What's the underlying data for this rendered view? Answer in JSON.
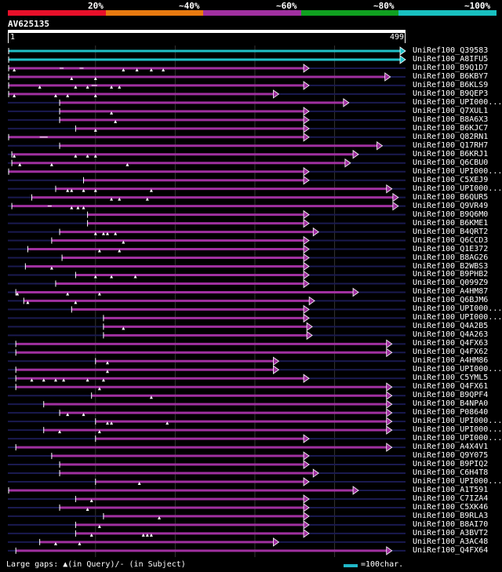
{
  "legend": {
    "labels": [
      "20%",
      "~40%",
      "~60%",
      "~80%",
      "~100%"
    ],
    "colors": [
      "#e8102a",
      "#e87a10",
      "#a030a0",
      "#10a020",
      "#18c0c0"
    ]
  },
  "query": {
    "name": "AV625135",
    "start": "1",
    "end": "499",
    "length": 499
  },
  "hits": [
    {
      "name": "UniRef100_Q39583",
      "color": "#20c0c8",
      "start": 1,
      "end": 499,
      "marks": [],
      "gaps": []
    },
    {
      "name": "UniRef100_A8IFU5",
      "color": "#20c0c8",
      "start": 1,
      "end": 499,
      "marks": [],
      "gaps": []
    },
    {
      "name": "UniRef100_B9Q1D7",
      "color": "#a030a0",
      "start": 1,
      "end": 378,
      "marks": [
        8,
        145,
        162,
        180,
        195
      ],
      "gaps": [
        [
          65,
          70
        ],
        [
          90,
          95
        ]
      ]
    },
    {
      "name": "UniRef100_B6KBY7",
      "color": "#a030a0",
      "start": 1,
      "end": 480,
      "marks": [
        80,
        110
      ],
      "gaps": []
    },
    {
      "name": "UniRef100_B6KLS9",
      "color": "#a030a0",
      "start": 1,
      "end": 378,
      "marks": [
        40,
        85,
        100,
        130,
        140
      ],
      "gaps": [
        [
          105,
          112
        ]
      ]
    },
    {
      "name": "UniRef100_B9QEP3",
      "color": "#a030a0",
      "start": 1,
      "end": 340,
      "marks": [
        8,
        60,
        75,
        110
      ],
      "gaps": []
    },
    {
      "name": "UniRef100_UPI000...",
      "color": "#a030a0",
      "start": 65,
      "end": 428,
      "marks": [],
      "gaps": []
    },
    {
      "name": "UniRef100_Q7XUL1",
      "color": "#a030a0",
      "start": 65,
      "end": 378,
      "marks": [
        130
      ],
      "gaps": []
    },
    {
      "name": "UniRef100_B8A6X3",
      "color": "#a030a0",
      "start": 65,
      "end": 378,
      "marks": [
        135
      ],
      "gaps": []
    },
    {
      "name": "UniRef100_B6KJC7",
      "color": "#a030a0",
      "start": 85,
      "end": 378,
      "marks": [
        110
      ],
      "gaps": []
    },
    {
      "name": "UniRef100_Q82RN1",
      "color": "#a030a0",
      "start": 1,
      "end": 378,
      "marks": [],
      "gaps": [
        [
          40,
          50
        ]
      ]
    },
    {
      "name": "UniRef100_Q17RH7",
      "color": "#a030a0",
      "start": 65,
      "end": 470,
      "marks": [],
      "gaps": []
    },
    {
      "name": "UniRef100_B6KRJ1",
      "color": "#a030a0",
      "start": 5,
      "end": 440,
      "marks": [
        8,
        85,
        100,
        110
      ],
      "gaps": []
    },
    {
      "name": "UniRef100_Q6CBU0",
      "color": "#a030a0",
      "start": 5,
      "end": 430,
      "marks": [
        15,
        55,
        150
      ],
      "gaps": []
    },
    {
      "name": "UniRef100_UPI000...",
      "color": "#a030a0",
      "start": 1,
      "end": 378,
      "marks": [],
      "gaps": []
    },
    {
      "name": "UniRef100_C5XEJ9",
      "color": "#a030a0",
      "start": 95,
      "end": 378,
      "marks": [],
      "gaps": []
    },
    {
      "name": "UniRef100_UPI000...",
      "color": "#a030a0",
      "start": 60,
      "end": 482,
      "marks": [
        75,
        80,
        95,
        110,
        180
      ],
      "gaps": []
    },
    {
      "name": "UniRef100_B6QUR5",
      "color": "#a030a0",
      "start": 30,
      "end": 490,
      "marks": [
        130,
        140,
        175
      ],
      "gaps": []
    },
    {
      "name": "UniRef100_Q9VR49",
      "color": "#a030a0",
      "start": 5,
      "end": 490,
      "marks": [
        80,
        88,
        95
      ],
      "gaps": [
        [
          50,
          55
        ]
      ]
    },
    {
      "name": "UniRef100_B9Q6M0",
      "color": "#a030a0",
      "start": 100,
      "end": 378,
      "marks": [],
      "gaps": []
    },
    {
      "name": "UniRef100_B6KME1",
      "color": "#a030a0",
      "start": 100,
      "end": 378,
      "marks": [],
      "gaps": []
    },
    {
      "name": "UniRef100_B4QRT2",
      "color": "#a030a0",
      "start": 65,
      "end": 390,
      "marks": [
        110,
        120,
        125,
        135
      ],
      "gaps": []
    },
    {
      "name": "UniRef100_Q6CCD3",
      "color": "#a030a0",
      "start": 55,
      "end": 378,
      "marks": [
        145
      ],
      "gaps": []
    },
    {
      "name": "UniRef100_Q1E372",
      "color": "#a030a0",
      "start": 25,
      "end": 378,
      "marks": [
        115,
        140
      ],
      "gaps": []
    },
    {
      "name": "UniRef100_B8AG26",
      "color": "#a030a0",
      "start": 68,
      "end": 378,
      "marks": [],
      "gaps": []
    },
    {
      "name": "UniRef100_B2WBS3",
      "color": "#a030a0",
      "start": 22,
      "end": 378,
      "marks": [
        55
      ],
      "gaps": []
    },
    {
      "name": "UniRef100_B9PHB2",
      "color": "#a030a0",
      "start": 85,
      "end": 378,
      "marks": [
        110,
        130,
        160
      ],
      "gaps": []
    },
    {
      "name": "UniRef100_Q099Z9",
      "color": "#a030a0",
      "start": 60,
      "end": 378,
      "marks": [],
      "gaps": []
    },
    {
      "name": "UniRef100_A4HM87",
      "color": "#a030a0",
      "start": 10,
      "end": 440,
      "marks": [
        12,
        75,
        115
      ],
      "gaps": []
    },
    {
      "name": "UniRef100_Q6BJM6",
      "color": "#a030a0",
      "start": 20,
      "end": 385,
      "marks": [
        25,
        85
      ],
      "gaps": []
    },
    {
      "name": "UniRef100_UPI000...",
      "color": "#a030a0",
      "start": 80,
      "end": 378,
      "marks": [],
      "gaps": []
    },
    {
      "name": "UniRef100_UPI000...",
      "color": "#a030a0",
      "start": 120,
      "end": 378,
      "marks": [],
      "gaps": []
    },
    {
      "name": "UniRef100_Q4A2B5",
      "color": "#a030a0",
      "start": 120,
      "end": 382,
      "marks": [
        145
      ],
      "gaps": []
    },
    {
      "name": "UniRef100_Q4A263",
      "color": "#a030a0",
      "start": 120,
      "end": 382,
      "marks": [],
      "gaps": []
    },
    {
      "name": "UniRef100_Q4FX63",
      "color": "#a030a0",
      "start": 10,
      "end": 482,
      "marks": [],
      "gaps": []
    },
    {
      "name": "UniRef100_Q4FX62",
      "color": "#a030a0",
      "start": 10,
      "end": 482,
      "marks": [],
      "gaps": []
    },
    {
      "name": "UniRef100_A4HM86",
      "color": "#a030a0",
      "start": 110,
      "end": 340,
      "marks": [
        125
      ],
      "gaps": []
    },
    {
      "name": "UniRef100_UPI000...",
      "color": "#a030a0",
      "start": 10,
      "end": 340,
      "marks": [
        125
      ],
      "gaps": []
    },
    {
      "name": "UniRef100_C5YML5",
      "color": "#a030a0",
      "start": 10,
      "end": 378,
      "marks": [
        30,
        45,
        60,
        70,
        100,
        120
      ],
      "gaps": []
    },
    {
      "name": "UniRef100_Q4FX61",
      "color": "#a030a0",
      "start": 10,
      "end": 482,
      "marks": [
        115
      ],
      "gaps": []
    },
    {
      "name": "UniRef100_B9QPF4",
      "color": "#a030a0",
      "start": 105,
      "end": 482,
      "marks": [
        180
      ],
      "gaps": []
    },
    {
      "name": "UniRef100_B4NPA0",
      "color": "#a030a0",
      "start": 45,
      "end": 482,
      "marks": [],
      "gaps": []
    },
    {
      "name": "UniRef100_P08640",
      "color": "#a030a0",
      "start": 65,
      "end": 482,
      "marks": [
        75,
        95
      ],
      "gaps": []
    },
    {
      "name": "UniRef100_UPI000...",
      "color": "#a030a0",
      "start": 110,
      "end": 482,
      "marks": [
        125,
        130,
        200
      ],
      "gaps": []
    },
    {
      "name": "UniRef100_UPI000...",
      "color": "#a030a0",
      "start": 45,
      "end": 482,
      "marks": [
        65,
        115
      ],
      "gaps": []
    },
    {
      "name": "UniRef100_UPI000...",
      "color": "#a030a0",
      "start": 110,
      "end": 378,
      "marks": [],
      "gaps": []
    },
    {
      "name": "UniRef100_A4X4V1",
      "color": "#a030a0",
      "start": 10,
      "end": 482,
      "marks": [],
      "gaps": []
    },
    {
      "name": "UniRef100_Q9Y075",
      "color": "#a030a0",
      "start": 55,
      "end": 378,
      "marks": [],
      "gaps": []
    },
    {
      "name": "UniRef100_B9PIQ2",
      "color": "#a030a0",
      "start": 65,
      "end": 378,
      "marks": [],
      "gaps": []
    },
    {
      "name": "UniRef100_C6H4T8",
      "color": "#a030a0",
      "start": 65,
      "end": 390,
      "marks": [],
      "gaps": []
    },
    {
      "name": "UniRef100_UPI000...",
      "color": "#a030a0",
      "start": 110,
      "end": 378,
      "marks": [
        165
      ],
      "gaps": []
    },
    {
      "name": "UniRef100_A1T591",
      "color": "#a030a0",
      "start": 1,
      "end": 440,
      "marks": [],
      "gaps": []
    },
    {
      "name": "UniRef100_C7IZA4",
      "color": "#a030a0",
      "start": 85,
      "end": 378,
      "marks": [
        105
      ],
      "gaps": []
    },
    {
      "name": "UniRef100_C5XK46",
      "color": "#a030a0",
      "start": 65,
      "end": 378,
      "marks": [
        100
      ],
      "gaps": []
    },
    {
      "name": "UniRef100_B9RLA3",
      "color": "#a030a0",
      "start": 120,
      "end": 378,
      "marks": [
        190
      ],
      "gaps": []
    },
    {
      "name": "UniRef100_B8AI70",
      "color": "#a030a0",
      "start": 85,
      "end": 378,
      "marks": [
        115
      ],
      "gaps": []
    },
    {
      "name": "UniRef100_A3BVT2",
      "color": "#a030a0",
      "start": 85,
      "end": 378,
      "marks": [
        105,
        170,
        175,
        180
      ],
      "gaps": []
    },
    {
      "name": "UniRef100_A3AC48",
      "color": "#a030a0",
      "start": 40,
      "end": 340,
      "marks": [
        60,
        90
      ],
      "gaps": []
    },
    {
      "name": "UniRef100_Q4FX64",
      "color": "#a030a0",
      "start": 10,
      "end": 482,
      "marks": [],
      "gaps": []
    }
  ],
  "footer": {
    "gaps_text": "Large gaps: ▲(in Query)/- (in Subject)",
    "scale_color": "#20b8c8",
    "scale_text": "=100char."
  }
}
